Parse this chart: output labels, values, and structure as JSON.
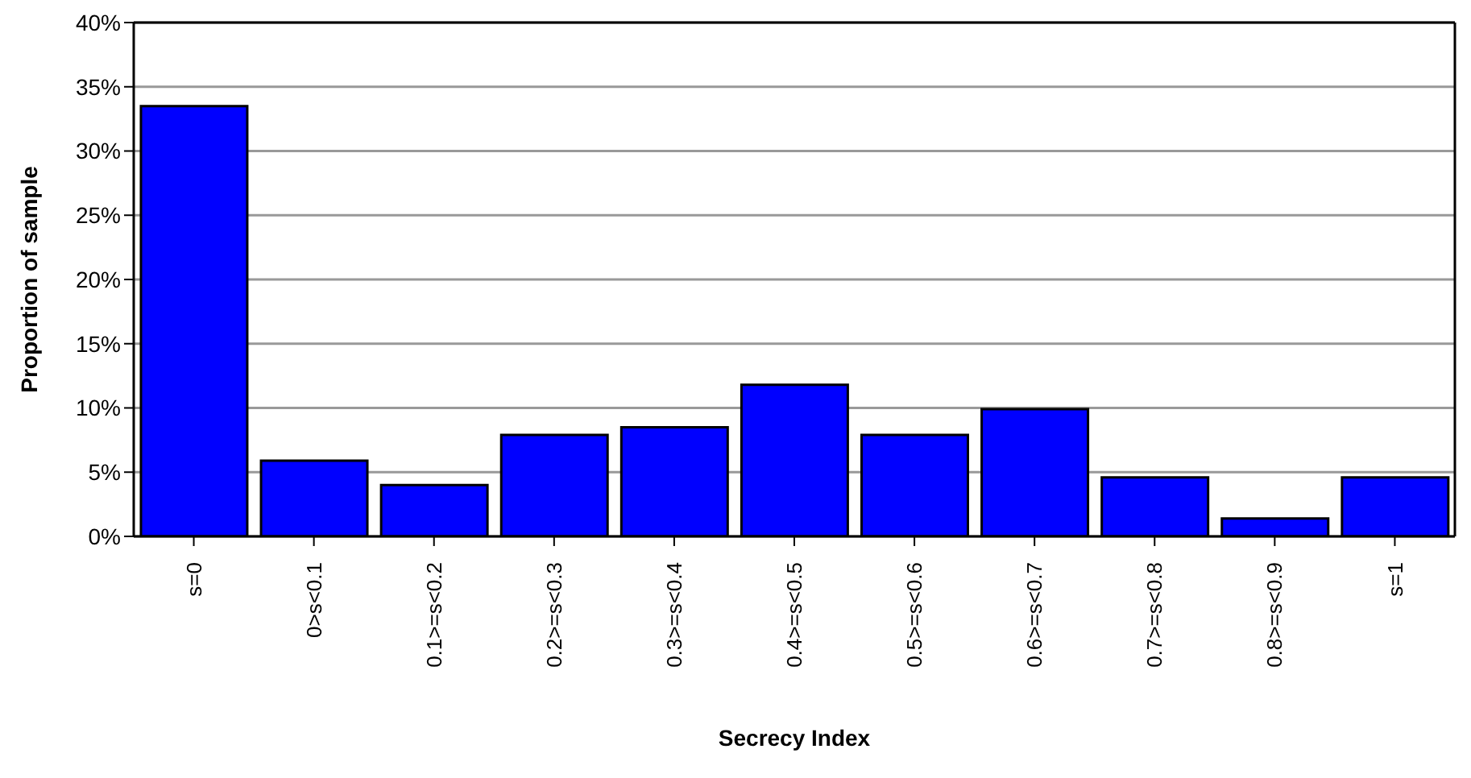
{
  "chart_data": {
    "type": "bar",
    "xlabel": "Secrecy Index",
    "ylabel": "Proportion of sample",
    "categories": [
      "s=0",
      "0>s<0.1",
      "0.1>=s<0.2",
      "0.2>=s<0.3",
      "0.3>=s<0.4",
      "0.4>=s<0.5",
      "0.5>=s<0.6",
      "0.6>=s<0.7",
      "0.7>=s<0.8",
      "0.8>=s<0.9",
      "s=1"
    ],
    "values": [
      33.5,
      5.9,
      4.0,
      7.9,
      8.5,
      11.8,
      7.9,
      9.9,
      4.6,
      1.4,
      4.6
    ],
    "color": "#0000ff",
    "ylim": [
      0,
      40
    ],
    "yticks": [
      {
        "value": 0,
        "label": "0%"
      },
      {
        "value": 5,
        "label": "5%"
      },
      {
        "value": 10,
        "label": "10%"
      },
      {
        "value": 15,
        "label": "15%"
      },
      {
        "value": 20,
        "label": "20%"
      },
      {
        "value": 25,
        "label": "25%"
      },
      {
        "value": 30,
        "label": "30%"
      },
      {
        "value": 35,
        "label": "35%"
      },
      {
        "value": 40,
        "label": "40%"
      }
    ],
    "grid": "y"
  }
}
